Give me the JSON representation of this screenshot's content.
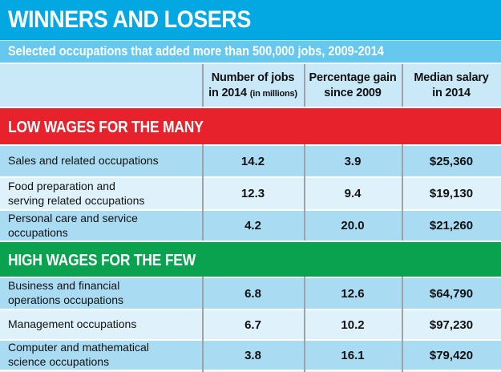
{
  "title": "WINNERS AND LOSERS",
  "subtitle": "Selected occupations that added more than 500,000 jobs, 2009-2014",
  "columns": {
    "jobs": {
      "line1": "Number of jobs",
      "line2": "in 2014",
      "note": "(in millions)"
    },
    "gain": {
      "line1": "Percentage gain",
      "line2": "since 2009"
    },
    "salary": {
      "line1": "Median salary",
      "line2": "in 2014"
    }
  },
  "sections": [
    {
      "header": "LOW WAGES FOR THE MANY",
      "color": "#e8222c",
      "rows": [
        {
          "label": "Sales and related occupations",
          "jobs": "14.2",
          "gain": "3.9",
          "salary": "$25,360"
        },
        {
          "label": "Food preparation and\nserving related occupations",
          "jobs": "12.3",
          "gain": "9.4",
          "salary": "$19,130"
        },
        {
          "label": "Personal care and service occupations",
          "jobs": "4.2",
          "gain": "20.0",
          "salary": "$21,260"
        }
      ]
    },
    {
      "header": "HIGH WAGES FOR THE FEW",
      "color": "#0aa24f",
      "rows": [
        {
          "label": "Business and financial\noperations occupations",
          "jobs": "6.8",
          "gain": "12.6",
          "salary": "$64,790"
        },
        {
          "label": "Management occupations",
          "jobs": "6.7",
          "gain": "10.2",
          "salary": "$97,230"
        },
        {
          "label": "Computer and mathematical\nscience occupations",
          "jobs": "3.8",
          "gain": "16.1",
          "salary": "$79,420"
        }
      ]
    }
  ],
  "colors": {
    "title_bar": "#03a7e1",
    "subtitle_bar": "#66c7ef",
    "header_bg": "#c9e9f8",
    "row_medium": "#a9dbf3",
    "row_light": "#dff1fb",
    "section_red": "#e8222c",
    "section_green": "#0aa24f",
    "divider_gray": "#9fa2a5",
    "text_white": "#ffffff",
    "text_black": "#111111"
  },
  "chart_data": {
    "type": "table",
    "title": "WINNERS AND LOSERS",
    "subtitle": "Selected occupations that added more than 500,000 jobs, 2009-2014",
    "columns": [
      "Occupation",
      "Number of jobs in 2014 (in millions)",
      "Percentage gain since 2009",
      "Median salary in 2014"
    ],
    "groups": [
      {
        "name": "LOW WAGES FOR THE MANY",
        "rows": [
          [
            "Sales and related occupations",
            14.2,
            3.9,
            "$25,360"
          ],
          [
            "Food preparation and serving related occupations",
            12.3,
            9.4,
            "$19,130"
          ],
          [
            "Personal care and service occupations",
            4.2,
            20.0,
            "$21,260"
          ]
        ]
      },
      {
        "name": "HIGH WAGES FOR THE FEW",
        "rows": [
          [
            "Business and financial operations occupations",
            6.8,
            12.6,
            "$64,790"
          ],
          [
            "Management occupations",
            6.7,
            10.2,
            "$97,230"
          ],
          [
            "Computer and mathematical science occupations",
            3.8,
            16.1,
            "$79,420"
          ]
        ]
      }
    ]
  }
}
